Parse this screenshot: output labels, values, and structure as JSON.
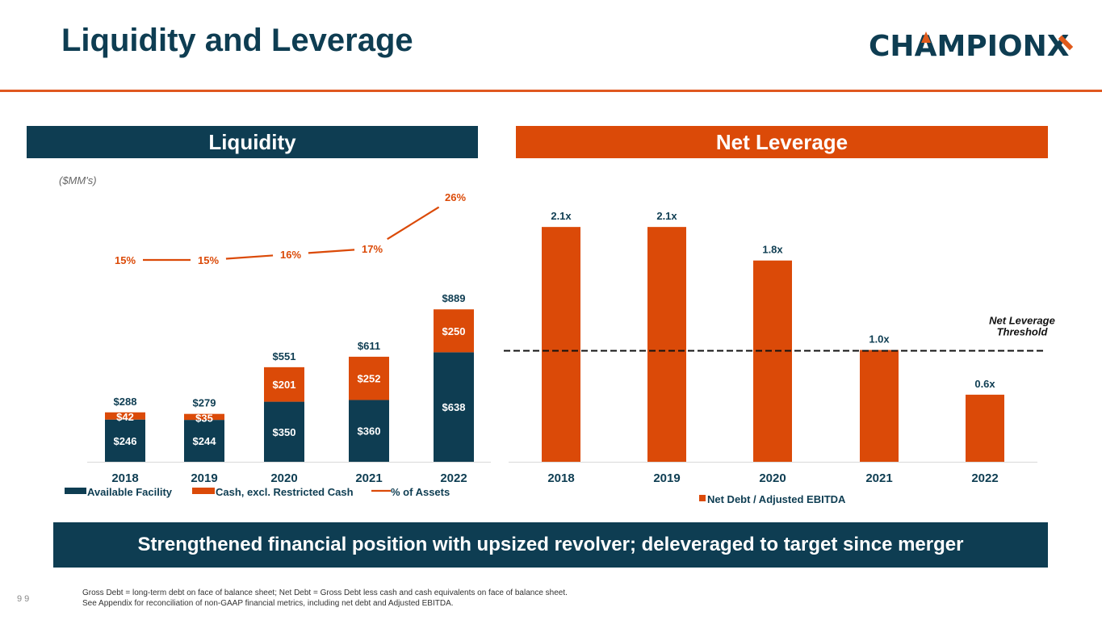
{
  "header": {
    "title": "Liquidity and Leverage",
    "logo_text_pre": "CH",
    "logo_text_a": "A",
    "logo_text_post": "MPION",
    "logo_text_x": "X"
  },
  "colors": {
    "navy": "#0e3d52",
    "orange": "#db4a08",
    "rule": "#e0581f"
  },
  "sections": {
    "liquidity_title": "Liquidity",
    "leverage_title": "Net Leverage",
    "units_note": "($MM's)"
  },
  "chart_data": [
    {
      "type": "bar",
      "stacked": true,
      "title": "Liquidity",
      "units": "($MM's)",
      "categories": [
        "2018",
        "2019",
        "2020",
        "2021",
        "2022"
      ],
      "series": [
        {
          "name": "Available Facility",
          "color": "#0e3d52",
          "values": [
            246,
            244,
            350,
            360,
            638
          ],
          "labels": [
            "$246",
            "$244",
            "$350",
            "$360",
            "$638"
          ]
        },
        {
          "name": "Cash, excl. Restricted Cash",
          "color": "#db4a08",
          "values": [
            42,
            35,
            201,
            252,
            250
          ],
          "labels": [
            "$42",
            "$35",
            "$201",
            "$252",
            "$250"
          ]
        }
      ],
      "totals": [
        288,
        279,
        551,
        611,
        889
      ],
      "total_labels": [
        "$288",
        "$279",
        "$551",
        "$611",
        "$889"
      ],
      "line_series": {
        "name": "% of Assets",
        "color": "#db4a08",
        "values": [
          15,
          15,
          16,
          17,
          26
        ],
        "labels": [
          "15%",
          "15%",
          "16%",
          "17%",
          "26%"
        ]
      },
      "legend": [
        "Available Facility",
        "Cash, excl. Restricted Cash",
        "% of Assets"
      ],
      "legend_position": "bottom",
      "ylim": [
        0,
        900
      ],
      "grid": false
    },
    {
      "type": "bar",
      "title": "Net Leverage",
      "categories": [
        "2018",
        "2019",
        "2020",
        "2021",
        "2022"
      ],
      "series": [
        {
          "name": "Net Debt / Adjusted EBITDA",
          "color": "#db4a08",
          "values": [
            2.1,
            2.1,
            1.8,
            1.0,
            0.6
          ],
          "labels": [
            "2.1x",
            "2.1x",
            "1.8x",
            "1.0x",
            "0.6x"
          ]
        }
      ],
      "threshold": {
        "value": 1.0,
        "label_line1": "Net Leverage",
        "label_line2": "Threshold"
      },
      "legend": [
        "Net Debt / Adjusted EBITDA"
      ],
      "legend_position": "bottom",
      "ylim": [
        0,
        2.1
      ],
      "grid": false
    }
  ],
  "banner": {
    "text": "Strengthened financial position with upsized revolver; deleveraged to target since merger"
  },
  "footer": {
    "page_number": "9 9",
    "note_line1": "Gross Debt = long-term debt on face of balance sheet; Net Debt = Gross Debt less cash and cash equivalents on face of balance sheet.",
    "note_line2": "See Appendix for reconciliation of non-GAAP financial metrics, including net debt and Adjusted EBITDA."
  }
}
